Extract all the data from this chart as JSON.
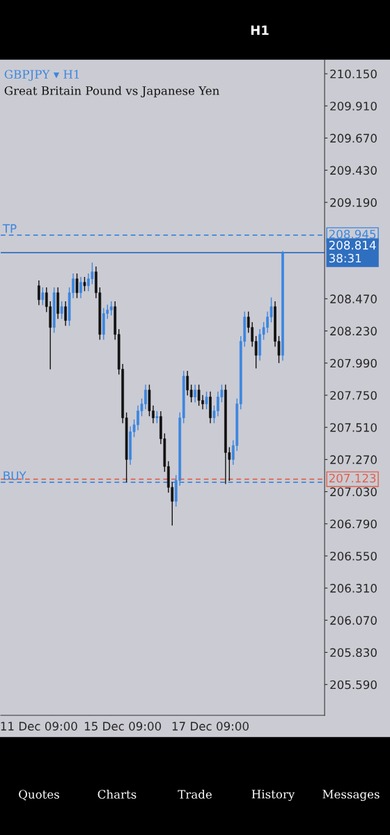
{
  "chart_data": {
    "type": "candlestick",
    "title": "GBPJPY ▾ H1",
    "subtitle": "Great Britain Pound vs Japanese Yen",
    "categories": [
      "11 Dec 09:00",
      null,
      null,
      null,
      null,
      null,
      null,
      null,
      null,
      null,
      null,
      null,
      null,
      null,
      null,
      null,
      null,
      null,
      null,
      null,
      null,
      null,
      "15 Dec 09:00",
      null,
      null,
      null,
      null,
      null,
      null,
      null,
      null,
      null,
      null,
      null,
      null,
      null,
      null,
      null,
      null,
      null,
      null,
      null,
      null,
      null,
      null,
      "17 Dec 09:00",
      null,
      null,
      null,
      null,
      null,
      null,
      null,
      null,
      null,
      null,
      null,
      null,
      null,
      null,
      null,
      null,
      null,
      null,
      null
    ],
    "ohlc": [
      [
        208.567,
        208.607,
        208.423,
        208.463
      ],
      [
        208.463,
        208.555,
        208.423,
        208.515
      ],
      [
        208.515,
        208.555,
        208.371,
        208.411
      ],
      [
        208.411,
        208.451,
        207.944,
        208.256
      ],
      [
        208.256,
        208.555,
        208.216,
        208.515
      ],
      [
        208.515,
        208.555,
        208.32,
        208.36
      ],
      [
        208.36,
        208.451,
        208.32,
        208.411
      ],
      [
        208.411,
        208.451,
        208.268,
        208.308
      ],
      [
        208.308,
        208.555,
        208.268,
        208.515
      ],
      [
        208.515,
        208.659,
        208.475,
        208.619
      ],
      [
        208.619,
        208.659,
        208.475,
        208.515
      ],
      [
        208.515,
        208.633,
        208.475,
        208.593
      ],
      [
        208.593,
        208.633,
        208.527,
        208.567
      ],
      [
        208.567,
        208.659,
        208.527,
        208.619
      ],
      [
        208.619,
        208.74,
        208.579,
        208.671
      ],
      [
        208.671,
        208.711,
        208.475,
        208.515
      ],
      [
        208.515,
        208.555,
        208.164,
        208.204
      ],
      [
        208.204,
        208.4,
        208.164,
        208.36
      ],
      [
        208.36,
        208.426,
        208.32,
        208.386
      ],
      [
        208.386,
        208.451,
        208.346,
        208.411
      ],
      [
        208.411,
        208.451,
        208.164,
        208.204
      ],
      [
        208.204,
        208.244,
        207.904,
        207.944
      ],
      [
        207.944,
        207.984,
        207.541,
        207.581
      ],
      [
        207.581,
        207.621,
        207.1,
        207.27
      ],
      [
        207.27,
        207.517,
        207.23,
        207.477
      ],
      [
        207.477,
        207.569,
        207.437,
        207.529
      ],
      [
        207.529,
        207.673,
        207.489,
        207.633
      ],
      [
        207.633,
        207.725,
        207.593,
        207.685
      ],
      [
        207.685,
        207.829,
        207.645,
        207.789
      ],
      [
        207.789,
        207.829,
        207.593,
        207.633
      ],
      [
        207.633,
        207.673,
        207.541,
        207.581
      ],
      [
        207.581,
        207.631,
        207.541,
        207.591
      ],
      [
        207.591,
        207.631,
        207.385,
        207.425
      ],
      [
        207.425,
        207.465,
        207.178,
        207.218
      ],
      [
        207.218,
        207.258,
        207.022,
        207.062
      ],
      [
        207.062,
        207.102,
        206.777,
        206.958
      ],
      [
        206.958,
        207.154,
        206.918,
        207.114
      ],
      [
        207.114,
        207.621,
        207.074,
        207.581
      ],
      [
        207.581,
        207.932,
        207.541,
        207.892
      ],
      [
        207.892,
        207.932,
        207.749,
        207.789
      ],
      [
        207.789,
        207.829,
        207.697,
        207.737
      ],
      [
        207.737,
        207.829,
        207.697,
        207.789
      ],
      [
        207.789,
        207.829,
        207.671,
        207.711
      ],
      [
        207.711,
        207.751,
        207.645,
        207.685
      ],
      [
        207.685,
        207.777,
        207.645,
        207.737
      ],
      [
        207.737,
        207.777,
        207.541,
        207.581
      ],
      [
        207.581,
        207.673,
        207.541,
        207.633
      ],
      [
        207.633,
        207.777,
        207.593,
        207.737
      ],
      [
        207.737,
        207.829,
        207.697,
        207.789
      ],
      [
        207.789,
        207.829,
        207.088,
        207.322
      ],
      [
        207.322,
        207.362,
        207.11,
        207.27
      ],
      [
        207.27,
        207.414,
        207.23,
        207.374
      ],
      [
        207.374,
        207.725,
        207.334,
        207.685
      ],
      [
        207.685,
        208.192,
        207.645,
        208.152
      ],
      [
        208.152,
        208.374,
        208.112,
        208.334
      ],
      [
        208.334,
        208.374,
        208.216,
        208.256
      ],
      [
        208.256,
        208.296,
        208.112,
        208.152
      ],
      [
        208.152,
        208.192,
        207.95,
        208.048
      ],
      [
        208.048,
        208.244,
        208.008,
        208.204
      ],
      [
        208.204,
        208.296,
        208.164,
        208.256
      ],
      [
        208.256,
        208.374,
        208.216,
        208.334
      ],
      [
        208.334,
        208.48,
        208.294,
        208.411
      ],
      [
        208.411,
        208.451,
        208.112,
        208.152
      ],
      [
        208.152,
        208.192,
        207.99,
        208.048
      ],
      [
        208.048,
        208.827,
        208.008,
        208.816
      ]
    ],
    "colors": [
      "#111111",
      "#3a86e0",
      "#111111",
      "#111111",
      "#3a86e0",
      "#111111",
      "#3a86e0",
      "#111111",
      "#3a86e0",
      "#3a86e0",
      "#111111",
      "#3a86e0",
      "#111111",
      "#3a86e0",
      "#3a86e0",
      "#111111",
      "#111111",
      "#3a86e0",
      "#3a86e0",
      "#3a86e0",
      "#111111",
      "#111111",
      "#111111",
      "#111111",
      "#3a86e0",
      "#3a86e0",
      "#3a86e0",
      "#3a86e0",
      "#3a86e0",
      "#111111",
      "#111111",
      "#3a86e0",
      "#111111",
      "#111111",
      "#111111",
      "#111111",
      "#3a86e0",
      "#3a86e0",
      "#3a86e0",
      "#111111",
      "#111111",
      "#3a86e0",
      "#111111",
      "#111111",
      "#3a86e0",
      "#111111",
      "#3a86e0",
      "#3a86e0",
      "#3a86e0",
      "#111111",
      "#111111",
      "#3a86e0",
      "#3a86e0",
      "#3a86e0",
      "#3a86e0",
      "#111111",
      "#111111",
      "#111111",
      "#3a86e0",
      "#3a86e0",
      "#3a86e0",
      "#3a86e0",
      "#111111",
      "#111111",
      "#3a86e0"
    ],
    "ylim": [
      205.36,
      210.254
    ],
    "yticks": [
      {
        "value": 210.15,
        "label": "210.150"
      },
      {
        "value": 209.91,
        "label": "209.910"
      },
      {
        "value": 209.67,
        "label": "209.670"
      },
      {
        "value": 209.43,
        "label": "209.430"
      },
      {
        "value": 209.19,
        "label": "209.190"
      },
      {
        "value": 208.47,
        "label": "208.470"
      },
      {
        "value": 208.23,
        "label": "208.230"
      },
      {
        "value": 207.99,
        "label": "207.990"
      },
      {
        "value": 207.75,
        "label": "207.750"
      },
      {
        "value": 207.51,
        "label": "207.510"
      },
      {
        "value": 207.27,
        "label": "207.270"
      },
      {
        "value": 207.03,
        "label": "207.030"
      },
      {
        "value": 206.79,
        "label": "206.790"
      },
      {
        "value": 206.55,
        "label": "206.550"
      },
      {
        "value": 206.31,
        "label": "206.310"
      },
      {
        "value": 206.07,
        "label": "206.070"
      },
      {
        "value": 205.83,
        "label": "205.830"
      },
      {
        "value": 205.59,
        "label": "205.590"
      }
    ],
    "ref_lines": [
      {
        "axis": "y",
        "value": 208.945,
        "label": "208.945",
        "color": "#3a86e0",
        "line_style": "dashed"
      },
      {
        "axis": "y",
        "value": 208.814,
        "label": "208.814\n38:31",
        "color": "#2f6fc0",
        "line_style": "solid"
      },
      {
        "axis": "y",
        "value": 207.123,
        "label": "207.123",
        "color": "#e0604a",
        "line_style": "dashed"
      },
      {
        "axis": "y",
        "value": 207.1,
        "label": null,
        "color": "#3a86e0",
        "line_style": "dashed"
      }
    ],
    "annotations": [
      "TP",
      "BUY",
      "H1",
      "Quotes",
      "Charts",
      "Trade",
      "History",
      "Messages"
    ],
    "grid": false,
    "legend": false
  }
}
